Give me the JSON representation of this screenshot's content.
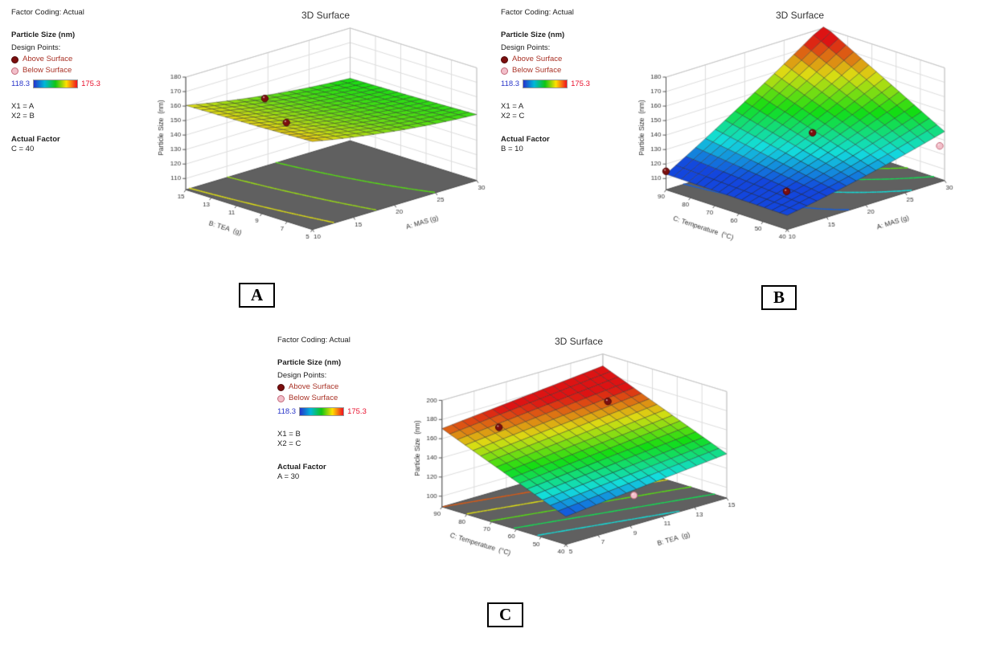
{
  "panels": [
    {
      "label": "A",
      "title": "3D Surface",
      "legend": {
        "factor_coding": "Factor Coding: Actual",
        "response": "Particle Size  (nm)",
        "design_points_label": "Design Points:",
        "above_label": "Above Surface",
        "below_label": "Below Surface",
        "scale_min": "118.3",
        "scale_max": "175.3",
        "x1": "X1 = A",
        "x2": "X2 = B",
        "actual_factor_label": "Actual Factor",
        "actual_factor_value": "C = 40"
      }
    },
    {
      "label": "B",
      "title": "3D Surface",
      "legend": {
        "factor_coding": "Factor Coding: Actual",
        "response": "Particle Size  (nm)",
        "design_points_label": "Design Points:",
        "above_label": "Above Surface",
        "below_label": "Below Surface",
        "scale_min": "118.3",
        "scale_max": "175.3",
        "x1": "X1 = A",
        "x2": "X2 = C",
        "actual_factor_label": "Actual Factor",
        "actual_factor_value": "B = 10"
      }
    },
    {
      "label": "C",
      "title": "3D Surface",
      "legend": {
        "factor_coding": "Factor Coding: Actual",
        "response": "Particle Size  (nm)",
        "design_points_label": "Design Points:",
        "above_label": "Above Surface",
        "below_label": "Below Surface",
        "scale_min": "118.3",
        "scale_max": "175.3",
        "x1": "X1 = B",
        "x2": "X2 = C",
        "actual_factor_label": "Actual Factor",
        "actual_factor_value": "A = 30"
      }
    }
  ],
  "colors": {
    "above_point": "#7c0e0e",
    "above_point_border": "#4d0909",
    "below_point": "#f2bfca",
    "below_point_border": "#c46a7a",
    "point_label_text": "#a93226",
    "scale_min_color": "#2a36c9",
    "scale_max_color": "#e8112d",
    "scale_gradient": [
      "#2633cc",
      "#00b7d9",
      "#10c515",
      "#ffe000",
      "#ef1020"
    ],
    "floor": "#606060",
    "wall_grid": "#dcdcdc"
  },
  "chart_data": [
    {
      "type": "surface3d",
      "panel": "A",
      "title": "3D Surface",
      "xlabel": "A: MAS (g)",
      "ylabel": "B: TEA  (g)",
      "zlabel": "Particle Size  (nm)",
      "x_range": [
        10,
        30
      ],
      "y_range": [
        5,
        15
      ],
      "z_range": [
        110,
        180
      ],
      "x_ticks": [
        10,
        15,
        20,
        25,
        30
      ],
      "y_ticks": [
        5,
        7,
        9,
        11,
        13,
        15
      ],
      "z_ticks": [
        110,
        120,
        130,
        140,
        150,
        160,
        170,
        180
      ],
      "color_scale": {
        "min": 118.3,
        "max": 175.3
      },
      "model": {
        "b0": 163,
        "bx": -1.2,
        "by": -0.35,
        "bxy": 0,
        "bxx": 0.022,
        "byy": 0.01,
        "x0": 10,
        "y0": 5
      },
      "contour_levels": [
        145,
        150,
        155,
        160
      ],
      "design_points": [
        {
          "x": 15,
          "y": 12,
          "z": 165,
          "kind": "above"
        },
        {
          "x": 13,
          "y": 9,
          "z": 160,
          "kind": "above"
        }
      ]
    },
    {
      "type": "surface3d",
      "panel": "B",
      "title": "3D Surface",
      "xlabel": "A: MAS (g)",
      "ylabel": "C: Temperature  (°C)",
      "zlabel": "Particle Size  (nm)",
      "x_range": [
        10,
        30
      ],
      "y_range": [
        40,
        90
      ],
      "z_range": [
        110,
        180
      ],
      "x_ticks": [
        10,
        15,
        20,
        25,
        30
      ],
      "y_ticks": [
        40,
        50,
        60,
        70,
        80,
        90
      ],
      "z_ticks": [
        110,
        120,
        130,
        140,
        150,
        160,
        170,
        180
      ],
      "color_scale": {
        "min": 118.3,
        "max": 175.3
      },
      "model": {
        "b0": 112,
        "bx": 0.9,
        "by": 0.02,
        "bxy": 0.045,
        "bxx": 0.015,
        "byy": 0,
        "x0": 10,
        "y0": 40
      },
      "contour_levels": [
        120,
        130,
        140,
        150,
        160,
        170
      ],
      "design_points": [
        {
          "x": 10,
          "y": 90,
          "z": 115,
          "kind": "above"
        },
        {
          "x": 13,
          "y": 50,
          "z": 118,
          "kind": "above"
        },
        {
          "x": 20,
          "y": 62,
          "z": 140,
          "kind": "above"
        },
        {
          "x": 30,
          "y": 42,
          "z": 125,
          "kind": "below"
        }
      ]
    },
    {
      "type": "surface3d",
      "panel": "C",
      "title": "3D Surface",
      "xlabel": "B: TEA  (g)",
      "ylabel": "C: Temperature  (°C)",
      "zlabel": "Particle Size  (nm)",
      "x_range": [
        5,
        15
      ],
      "y_range": [
        40,
        90
      ],
      "z_range": [
        100,
        200
      ],
      "x_ticks": [
        5,
        7,
        9,
        11,
        13,
        15
      ],
      "y_ticks": [
        40,
        50,
        60,
        70,
        80,
        90
      ],
      "z_ticks": [
        100,
        120,
        140,
        160,
        180,
        200
      ],
      "color_scale": {
        "min": 118.3,
        "max": 175.3
      },
      "model": {
        "b0": 118,
        "bx": 1.7,
        "by": 1.05,
        "bxy": 0,
        "bxx": 0,
        "byy": 0,
        "x0": 5,
        "y0": 40
      },
      "contour_levels": [
        130,
        140,
        150,
        160,
        170,
        180
      ],
      "design_points": [
        {
          "x": 7,
          "y": 80,
          "z": 170,
          "kind": "above"
        },
        {
          "x": 13,
          "y": 75,
          "z": 172,
          "kind": "above"
        },
        {
          "x": 10,
          "y": 45,
          "z": 112,
          "kind": "below"
        }
      ]
    }
  ]
}
